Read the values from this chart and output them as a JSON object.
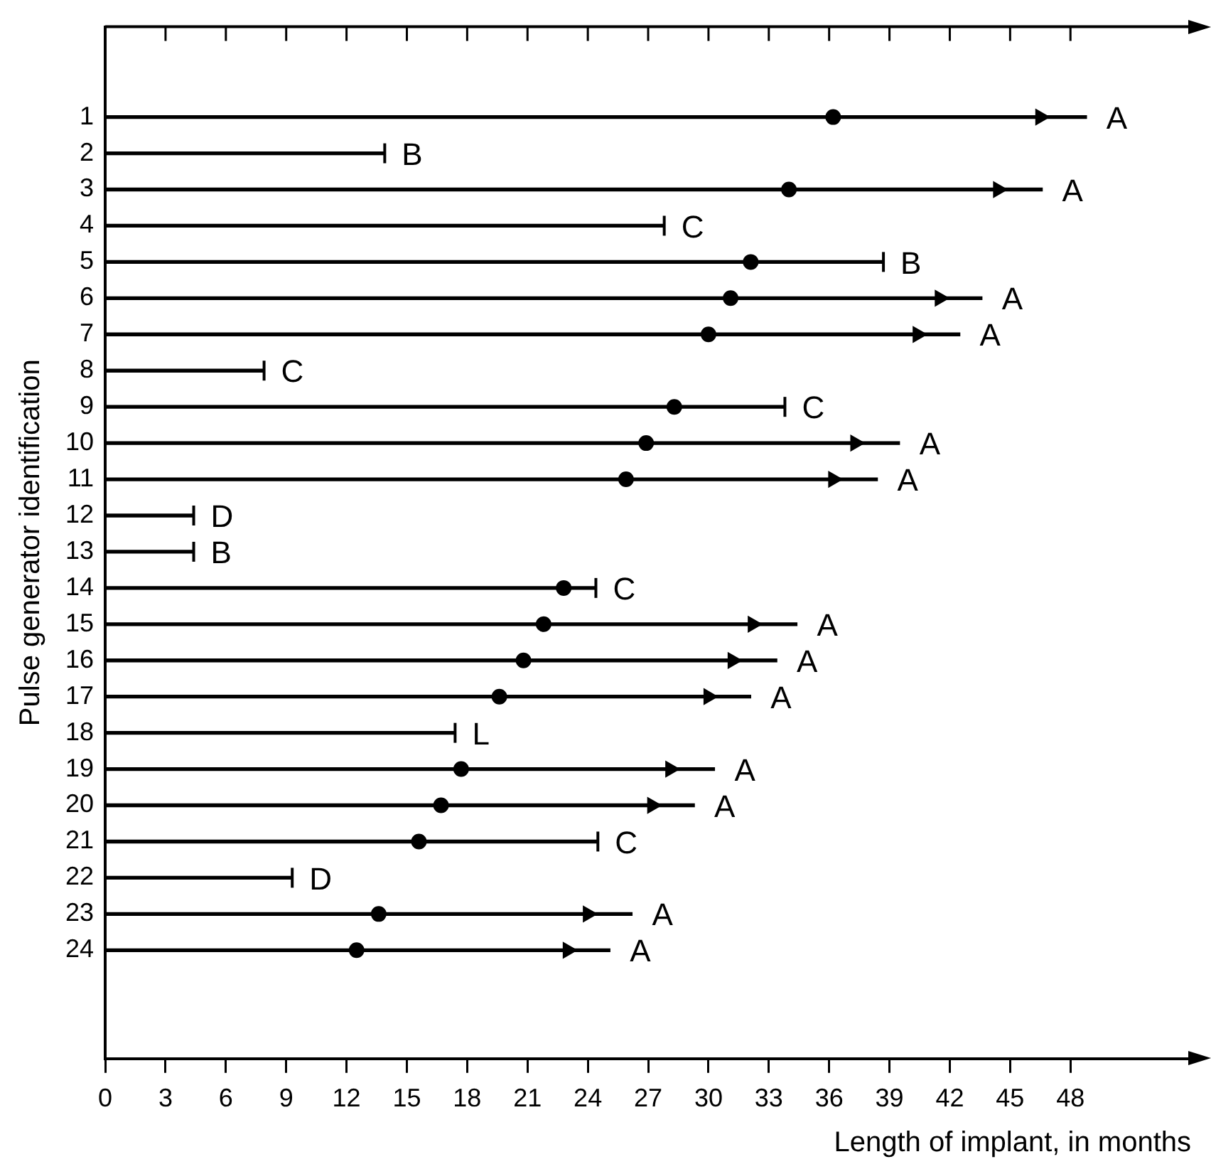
{
  "chart_data": {
    "type": "bar",
    "orientation": "horizontal",
    "xlabel": "Length of implant, in months",
    "ylabel": "Pulse generator identification",
    "categories": [
      "1",
      "2",
      "3",
      "4",
      "5",
      "6",
      "7",
      "8",
      "9",
      "10",
      "11",
      "12",
      "13",
      "14",
      "15",
      "16",
      "17",
      "18",
      "19",
      "20",
      "21",
      "22",
      "23",
      "24"
    ],
    "series": [
      {
        "type": "bar",
        "color": "#000000",
        "values": [
          48.8,
          13.9,
          46.6,
          27.8,
          38.7,
          43.6,
          42.5,
          7.9,
          33.8,
          39.5,
          38.4,
          4.4,
          4.4,
          24.4,
          34.4,
          33.4,
          32.1,
          17.4,
          30.3,
          29.3,
          24.5,
          9.3,
          26.2,
          25.1
        ],
        "value_labels": [
          "A",
          "B",
          "A",
          "C",
          "B",
          "A",
          "A",
          "C",
          "C",
          "A",
          "A",
          "D",
          "B",
          "C",
          "A",
          "A",
          "A",
          "L",
          "A",
          "A",
          "C",
          "D",
          "A",
          "A"
        ]
      },
      {
        "type": "scatter",
        "color": "#000000",
        "marker": "circle",
        "values": [
          36.2,
          null,
          34.0,
          null,
          32.1,
          31.1,
          30.0,
          null,
          28.3,
          26.9,
          25.9,
          null,
          null,
          22.8,
          21.8,
          20.8,
          19.6,
          null,
          17.7,
          16.7,
          15.6,
          null,
          13.6,
          12.5
        ]
      },
      {
        "type": "scatter",
        "color": "#000000",
        "marker": "triangle",
        "values": [
          46.5,
          null,
          44.4,
          null,
          null,
          41.5,
          40.4,
          null,
          null,
          37.3,
          36.2,
          null,
          null,
          null,
          32.2,
          31.2,
          30.0,
          null,
          28.1,
          27.2,
          null,
          null,
          24.0,
          23.0
        ]
      }
    ],
    "xlim": [
      0,
      54
    ],
    "xticks": [
      0,
      3,
      6,
      9,
      12,
      15,
      18,
      21,
      24,
      27,
      30,
      33,
      36,
      39,
      42,
      45,
      48
    ],
    "grid": false,
    "legend": false
  }
}
